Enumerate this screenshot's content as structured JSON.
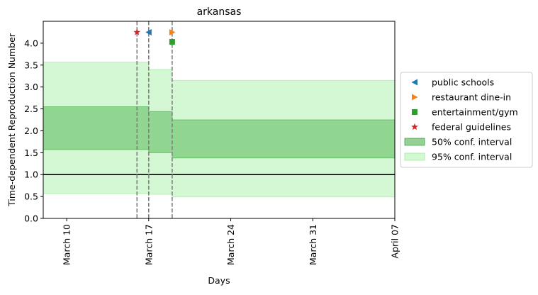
{
  "chart_data": {
    "type": "step-area",
    "title": "arkansas",
    "xlabel": "Days",
    "ylabel": "Time-dependent Reproduction Number",
    "x_range": [
      "2020-03-08",
      "2020-04-07"
    ],
    "ylim": [
      0,
      4.5
    ],
    "x_ticks": [
      {
        "date": "2020-03-10",
        "label": "March 10"
      },
      {
        "date": "2020-03-17",
        "label": "March 17"
      },
      {
        "date": "2020-03-24",
        "label": "March 24"
      },
      {
        "date": "2020-03-31",
        "label": "March 31"
      },
      {
        "date": "2020-04-07",
        "label": "April 07"
      }
    ],
    "y_ticks": [
      0.0,
      0.5,
      1.0,
      1.5,
      2.0,
      2.5,
      3.0,
      3.5,
      4.0
    ],
    "y_tick_labels": [
      "0.0",
      "0.5",
      "1.0",
      "1.5",
      "2.0",
      "2.5",
      "3.0",
      "3.5",
      "4.0"
    ],
    "reference_line": {
      "y": 1.0,
      "color": "#000000"
    },
    "intervals": [
      {
        "start": "2020-03-08",
        "end": "2020-03-17",
        "ci50": [
          1.57,
          2.55
        ],
        "ci95": [
          0.57,
          3.57
        ]
      },
      {
        "start": "2020-03-17",
        "end": "2020-03-19",
        "ci50": [
          1.5,
          2.44
        ],
        "ci95": [
          0.55,
          3.4
        ]
      },
      {
        "start": "2020-03-19",
        "end": "2020-04-07",
        "ci50": [
          1.38,
          2.25
        ],
        "ci95": [
          0.49,
          3.15
        ]
      }
    ],
    "events": [
      {
        "name": "public schools",
        "date": "2020-03-17",
        "y": 4.25,
        "marker": "triangle-left",
        "color": "#1f77b4"
      },
      {
        "name": "restaurant dine-in",
        "date": "2020-03-19",
        "y": 4.25,
        "marker": "triangle-right",
        "color": "#ff7f0e"
      },
      {
        "name": "entertainment/gym",
        "date": "2020-03-19",
        "y": 4.03,
        "marker": "square",
        "color": "#2ca02c"
      },
      {
        "name": "federal guidelines",
        "date": "2020-03-16",
        "y": 4.25,
        "marker": "star",
        "color": "#d62728"
      }
    ],
    "vlines": [
      "2020-03-16",
      "2020-03-17",
      "2020-03-19"
    ],
    "legend": {
      "placement": "right",
      "entries": [
        {
          "label": "public schools",
          "kind": "marker",
          "marker": "triangle-left",
          "color": "#1f77b4"
        },
        {
          "label": "restaurant dine-in",
          "kind": "marker",
          "marker": "triangle-right",
          "color": "#ff7f0e"
        },
        {
          "label": "entertainment/gym",
          "kind": "marker",
          "marker": "square",
          "color": "#2ca02c"
        },
        {
          "label": "federal guidelines",
          "kind": "marker",
          "marker": "star",
          "color": "#d62728"
        },
        {
          "label": "50% conf. interval",
          "kind": "patch",
          "color": "#2ca02c"
        },
        {
          "label": "95% conf. interval",
          "kind": "patch",
          "color": "#90ee90"
        }
      ]
    },
    "colors": {
      "ci50_fill": "#2ca02c",
      "ci95_fill": "#90ee90",
      "vline": "#808080"
    },
    "grid": false
  }
}
